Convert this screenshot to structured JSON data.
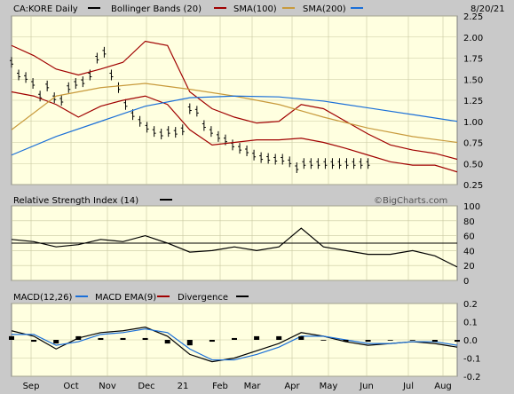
{
  "chart_data": [
    {
      "type": "line",
      "panel": "price",
      "title": "CA:KORE Daily",
      "legend": [
        {
          "name": "Bollinger Bands (20)",
          "color": "#a00000"
        },
        {
          "name": "SMA(100)",
          "color": "#c89a3c"
        },
        {
          "name": "SMA(200)",
          "color": "#1a6fd8"
        }
      ],
      "date": "8/20/21",
      "ylim": [
        0.25,
        2.25
      ],
      "yticks": [
        "0.25",
        "0.50",
        "0.75",
        "1.00",
        "1.25",
        "1.50",
        "1.75",
        "2.00",
        "2.25"
      ],
      "series": [
        {
          "name": "CA:KORE Daily",
          "style": "ohlc",
          "color": "#000000",
          "x": [
            0,
            5,
            10,
            15,
            20,
            25,
            30,
            35,
            40,
            45,
            50,
            55,
            60,
            65,
            70,
            75,
            80,
            85,
            90,
            95,
            100,
            105,
            110,
            115,
            120,
            125,
            130,
            135,
            140,
            145,
            150,
            155,
            160,
            165,
            170,
            175,
            180,
            185,
            190,
            195,
            200,
            205,
            210,
            215,
            220,
            225,
            230,
            235,
            240,
            245,
            250
          ],
          "values": [
            1.7,
            1.55,
            1.52,
            1.45,
            1.3,
            1.42,
            1.28,
            1.25,
            1.4,
            1.45,
            1.47,
            1.55,
            1.75,
            1.82,
            1.55,
            1.4,
            1.2,
            1.08,
            1.0,
            0.93,
            0.88,
            0.85,
            0.88,
            0.87,
            0.9,
            1.15,
            1.12,
            0.95,
            0.88,
            0.82,
            0.78,
            0.72,
            0.68,
            0.65,
            0.6,
            0.57,
            0.56,
            0.55,
            0.55,
            0.52,
            0.45,
            0.5,
            0.5,
            0.5,
            0.5,
            0.5,
            0.5,
            0.5,
            0.5,
            0.5,
            0.5
          ]
        },
        {
          "name": "Bollinger Upper",
          "color": "#a00000",
          "x": [
            0,
            10,
            20,
            30,
            40,
            50,
            60,
            70,
            80,
            90,
            100,
            110,
            120,
            130,
            140,
            150,
            160,
            170,
            180,
            190,
            200
          ],
          "values": [
            1.9,
            1.78,
            1.62,
            1.55,
            1.62,
            1.7,
            1.95,
            1.9,
            1.35,
            1.15,
            1.05,
            0.98,
            1.0,
            1.2,
            1.15,
            1.0,
            0.85,
            0.72,
            0.66,
            0.62,
            0.55
          ]
        },
        {
          "name": "Bollinger Lower",
          "color": "#a00000",
          "x": [
            0,
            10,
            20,
            30,
            40,
            50,
            60,
            70,
            80,
            90,
            100,
            110,
            120,
            130,
            140,
            150,
            160,
            170,
            180,
            190,
            200
          ],
          "values": [
            1.35,
            1.3,
            1.2,
            1.05,
            1.18,
            1.25,
            1.3,
            1.2,
            0.9,
            0.72,
            0.75,
            0.78,
            0.78,
            0.8,
            0.75,
            0.68,
            0.6,
            0.52,
            0.48,
            0.48,
            0.4
          ]
        },
        {
          "name": "SMA(100)",
          "color": "#c89a3c",
          "x": [
            0,
            20,
            40,
            60,
            80,
            100,
            120,
            140,
            160,
            180,
            200
          ],
          "values": [
            0.9,
            1.3,
            1.4,
            1.45,
            1.38,
            1.3,
            1.2,
            1.05,
            0.92,
            0.82,
            0.75
          ]
        },
        {
          "name": "SMA(200)",
          "color": "#1a6fd8",
          "x": [
            0,
            20,
            40,
            60,
            80,
            100,
            120,
            140,
            160,
            180,
            200
          ],
          "values": [
            0.6,
            0.82,
            1.0,
            1.18,
            1.28,
            1.3,
            1.29,
            1.24,
            1.16,
            1.08,
            1.0
          ]
        }
      ]
    },
    {
      "type": "line",
      "panel": "rsi",
      "title": "Relative Strength Index (14)",
      "watermark": "©BigCharts.com",
      "ylim": [
        0,
        100
      ],
      "yticks": [
        "0",
        "20",
        "40",
        "60",
        "80",
        "100"
      ],
      "reference_line": 50,
      "series": [
        {
          "name": "RSI",
          "color": "#000000",
          "x": [
            0,
            10,
            20,
            30,
            40,
            50,
            60,
            70,
            80,
            90,
            100,
            110,
            120,
            130,
            140,
            150,
            160,
            170,
            180,
            190,
            200
          ],
          "values": [
            55,
            52,
            45,
            48,
            55,
            52,
            60,
            50,
            38,
            40,
            45,
            40,
            45,
            70,
            45,
            40,
            35,
            35,
            40,
            33,
            18
          ]
        }
      ]
    },
    {
      "type": "line",
      "panel": "macd",
      "title": "MACD(12,26)",
      "legend": [
        {
          "name": "MACD(12,26)",
          "color": "#000000"
        },
        {
          "name": "MACD EMA(9)",
          "color": "#1a6fd8"
        },
        {
          "name": "Divergence",
          "color": "#a00000"
        }
      ],
      "ylim": [
        -0.2,
        0.2
      ],
      "yticks": [
        "-0.2",
        "-0.1",
        "0.0",
        "0.1",
        "0.2"
      ],
      "series": [
        {
          "name": "MACD",
          "color": "#000000",
          "x": [
            0,
            10,
            20,
            30,
            40,
            50,
            60,
            70,
            80,
            90,
            100,
            110,
            120,
            130,
            140,
            150,
            160,
            170,
            180,
            190,
            200
          ],
          "values": [
            0.05,
            0.02,
            -0.05,
            0.01,
            0.04,
            0.05,
            0.07,
            0.02,
            -0.08,
            -0.12,
            -0.1,
            -0.06,
            -0.02,
            0.04,
            0.02,
            -0.01,
            -0.03,
            -0.02,
            -0.01,
            -0.02,
            -0.04
          ]
        },
        {
          "name": "MACD EMA(9)",
          "color": "#1a6fd8",
          "x": [
            0,
            10,
            20,
            30,
            40,
            50,
            60,
            70,
            80,
            90,
            100,
            110,
            120,
            130,
            140,
            150,
            160,
            170,
            180,
            190,
            200
          ],
          "values": [
            0.03,
            0.03,
            -0.03,
            -0.01,
            0.03,
            0.04,
            0.06,
            0.04,
            -0.05,
            -0.11,
            -0.11,
            -0.08,
            -0.04,
            0.02,
            0.02,
            0.0,
            -0.02,
            -0.02,
            -0.01,
            -0.01,
            -0.03
          ]
        }
      ]
    }
  ],
  "x_axis": {
    "months": [
      "Sep",
      "Oct",
      "Nov",
      "Dec",
      "21",
      "Feb",
      "Mar",
      "Apr",
      "May",
      "Jun",
      "Jul",
      "Aug"
    ]
  },
  "colors": {
    "panel_bg": "#ffffe0",
    "frame_bg": "#c9c9c9",
    "grid": "#c8c8a0"
  }
}
